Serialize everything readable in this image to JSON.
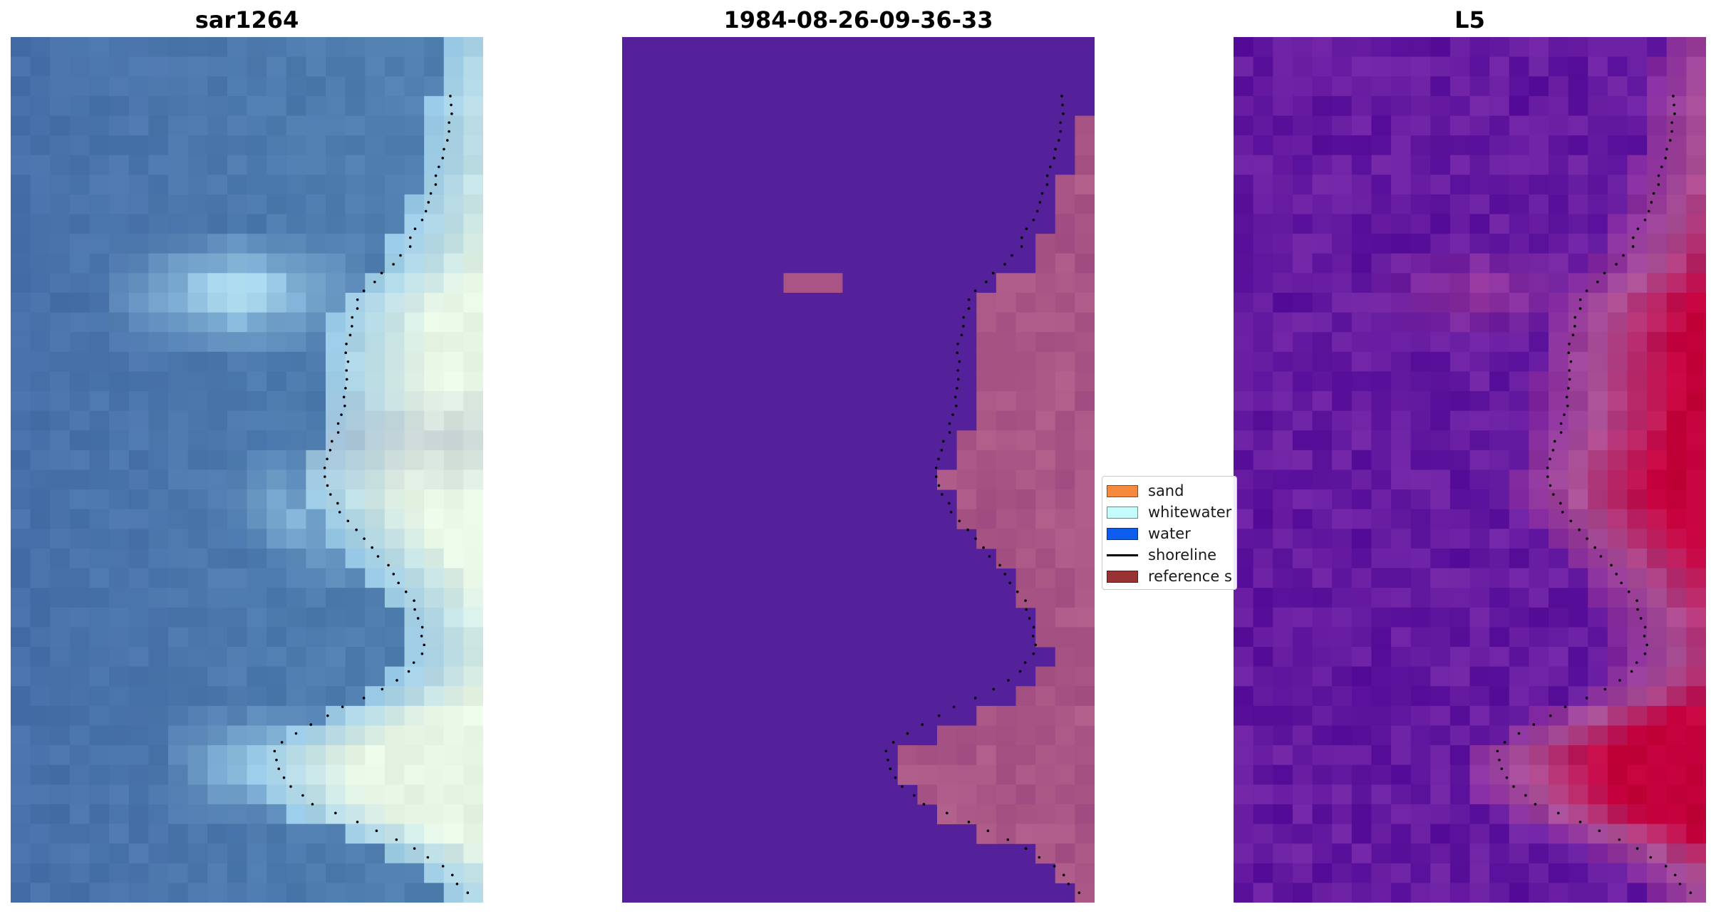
{
  "panels": [
    {
      "title": "sar1264"
    },
    {
      "title": "1984-08-26-09-36-33"
    },
    {
      "title": "L5"
    }
  ],
  "legend": {
    "items": [
      {
        "label": "sand",
        "color": "#f58a3c",
        "kind": "patch"
      },
      {
        "label": "whitewater",
        "color": "#c4fcfc",
        "kind": "patch"
      },
      {
        "label": "water",
        "color": "#0d5ced",
        "kind": "patch"
      },
      {
        "label": "shoreline",
        "color": "#000000",
        "kind": "line"
      },
      {
        "label": "reference s",
        "color": "#993333",
        "kind": "patch"
      }
    ]
  },
  "colors": {
    "rgb_water": "#4a77ac",
    "classified_background": "#55219a",
    "classified_sand": "#a8557f",
    "mndwi_low": "#5a139e",
    "mndwi_high": "#c2003c"
  }
}
